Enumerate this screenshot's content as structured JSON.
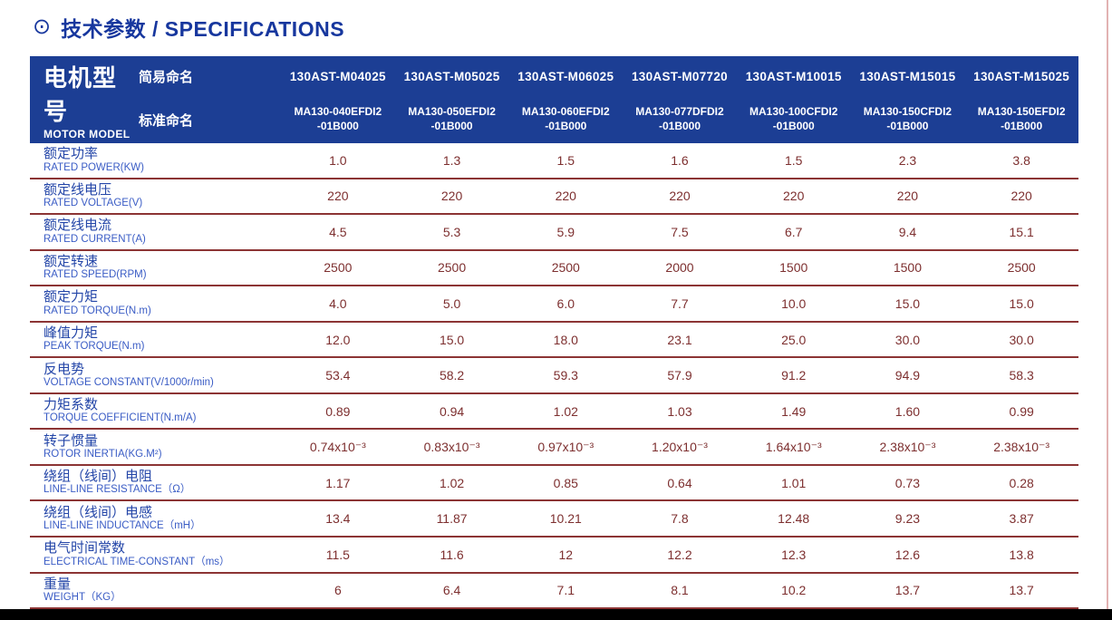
{
  "page": {
    "title_icon": "⊙",
    "title": "技术参数 / SPECIFICATIONS"
  },
  "colors": {
    "header_bg": "#1c3e94",
    "title_blue": "#17379e",
    "label_zh_blue": "#2446a8",
    "label_en_blue": "#3a5cc5",
    "value_maroon": "#7d2f2f",
    "divider_maroon": "#8c3434",
    "right_border_pink": "#e2b2b2",
    "bottom_bar": "#000000"
  },
  "table": {
    "header": {
      "group_title_zh": "电机型号",
      "group_title_en": "MOTOR MODEL",
      "simple_name_label": "简易命名",
      "standard_name_label": "标准命名",
      "columns": [
        {
          "model": "130AST-M04025",
          "standard": "MA130-040EFDI2\n-01B000"
        },
        {
          "model": "130AST-M05025",
          "standard": "MA130-050EFDI2\n-01B000"
        },
        {
          "model": "130AST-M06025",
          "standard": "MA130-060EFDI2\n-01B000"
        },
        {
          "model": "130AST-M07720",
          "standard": "MA130-077DFDI2\n-01B000"
        },
        {
          "model": "130AST-M10015",
          "standard": "MA130-100CFDI2\n-01B000"
        },
        {
          "model": "130AST-M15015",
          "standard": "MA130-150CFDI2\n-01B000"
        },
        {
          "model": "130AST-M15025",
          "standard": "MA130-150EFDI2\n-01B000"
        }
      ]
    },
    "rows": [
      {
        "label_zh": "额定功率",
        "label_en": "RATED POWER(KW)",
        "values": [
          "1.0",
          "1.3",
          "1.5",
          "1.6",
          "1.5",
          "2.3",
          "3.8"
        ]
      },
      {
        "label_zh": "额定线电压",
        "label_en": "RATED VOLTAGE(V)",
        "values": [
          "220",
          "220",
          "220",
          "220",
          "220",
          "220",
          "220"
        ]
      },
      {
        "label_zh": "额定线电流",
        "label_en": "RATED CURRENT(A)",
        "values": [
          "4.5",
          "5.3",
          "5.9",
          "7.5",
          "6.7",
          "9.4",
          "15.1"
        ]
      },
      {
        "label_zh": "额定转速",
        "label_en": "RATED SPEED(RPM)",
        "values": [
          "2500",
          "2500",
          "2500",
          "2000",
          "1500",
          "1500",
          "2500"
        ]
      },
      {
        "label_zh": "额定力矩",
        "label_en": "RATED TORQUE(N.m)",
        "values": [
          "4.0",
          "5.0",
          "6.0",
          "7.7",
          "10.0",
          "15.0",
          "15.0"
        ]
      },
      {
        "label_zh": "峰值力矩",
        "label_en": "PEAK TORQUE(N.m)",
        "values": [
          "12.0",
          "15.0",
          "18.0",
          "23.1",
          "25.0",
          "30.0",
          "30.0"
        ]
      },
      {
        "label_zh": "反电势",
        "label_en": "VOLTAGE CONSTANT(V/1000r/min)",
        "values": [
          "53.4",
          "58.2",
          "59.3",
          "57.9",
          "91.2",
          "94.9",
          "58.3"
        ]
      },
      {
        "label_zh": "力矩系数",
        "label_en": "TORQUE COEFFICIENT(N.m/A)",
        "values": [
          "0.89",
          "0.94",
          "1.02",
          "1.03",
          "1.49",
          "1.60",
          "0.99"
        ]
      },
      {
        "label_zh": "转子惯量",
        "label_en": "ROTOR INERTIA(KG.M²)",
        "values": [
          "0.74x10⁻³",
          "0.83x10⁻³",
          "0.97x10⁻³",
          "1.20x10⁻³",
          "1.64x10⁻³",
          "2.38x10⁻³",
          "2.38x10⁻³"
        ]
      },
      {
        "label_zh": "绕组（线间）电阻",
        "label_en": "LINE-LINE RESISTANCE（Ω）",
        "values": [
          "1.17",
          "1.02",
          "0.85",
          "0.64",
          "1.01",
          "0.73",
          "0.28"
        ]
      },
      {
        "label_zh": "绕组（线间）电感",
        "label_en": "LINE-LINE INDUCTANCE（mH）",
        "values": [
          "13.4",
          "11.87",
          "10.21",
          "7.8",
          "12.48",
          "9.23",
          "3.87"
        ]
      },
      {
        "label_zh": "电气时间常数",
        "label_en": "ELECTRICAL TIME-CONSTANT（ms）",
        "values": [
          "11.5",
          "11.6",
          "12",
          "12.2",
          "12.3",
          "12.6",
          "13.8"
        ]
      },
      {
        "label_zh": "重量",
        "label_en": "WEIGHT（KG）",
        "values": [
          "6",
          "6.4",
          "7.1",
          "8.1",
          "10.2",
          "13.7",
          "13.7"
        ]
      }
    ]
  }
}
